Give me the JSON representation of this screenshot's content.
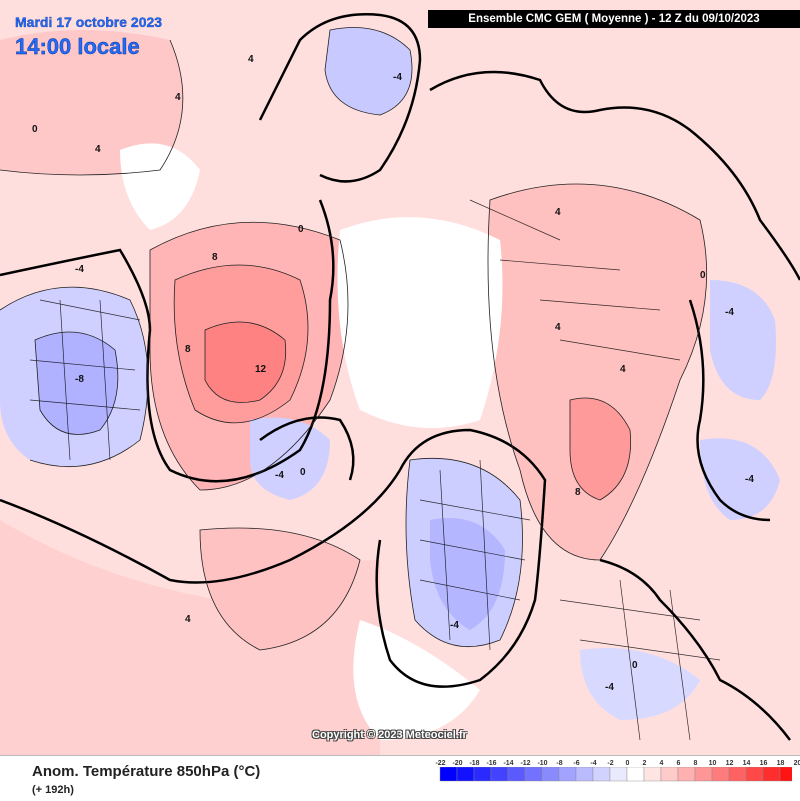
{
  "header": {
    "date_label": "Mardi 17 octobre 2023",
    "time_label": "14:00 locale",
    "model_label": "Ensemble CMC GEM  ( Moyenne )  -  12 Z du 09/10/2023"
  },
  "map": {
    "projection": "polar-stereographic-north",
    "field": "850 hPa temperature anomaly",
    "contour_labels": [
      "12",
      "8",
      "8",
      "8",
      "4",
      "4",
      "4",
      "4",
      "4",
      "4",
      "4",
      "0",
      "0",
      "0",
      "0",
      "0",
      "-4",
      "-4",
      "-4",
      "-4",
      "-4",
      "-4",
      "-4",
      "-8"
    ],
    "copyright": "Copyright © 2023 Meteociel.fr"
  },
  "footer": {
    "variable_label": "Anom. Température 850hPa (°C)",
    "lead_label": "(+ 192h)"
  },
  "legend": {
    "ticks": [
      "-22",
      "-20",
      "-18",
      "-16",
      "-14",
      "-12",
      "-10",
      "-8",
      "-6",
      "-4",
      "-2",
      "0",
      "2",
      "4",
      "6",
      "8",
      "10",
      "12",
      "14",
      "16",
      "18",
      "20"
    ],
    "colors": [
      "#0000ff",
      "#1212ff",
      "#2a2aff",
      "#4242ff",
      "#5a5aff",
      "#7272ff",
      "#8a8aff",
      "#a2a2ff",
      "#babaff",
      "#d2d2ff",
      "#eaeaff",
      "#ffffff",
      "#ffe4e4",
      "#ffcaca",
      "#ffb0b0",
      "#ff9696",
      "#ff7c7c",
      "#ff6262",
      "#ff4848",
      "#ff2e2e",
      "#ff1414"
    ]
  }
}
